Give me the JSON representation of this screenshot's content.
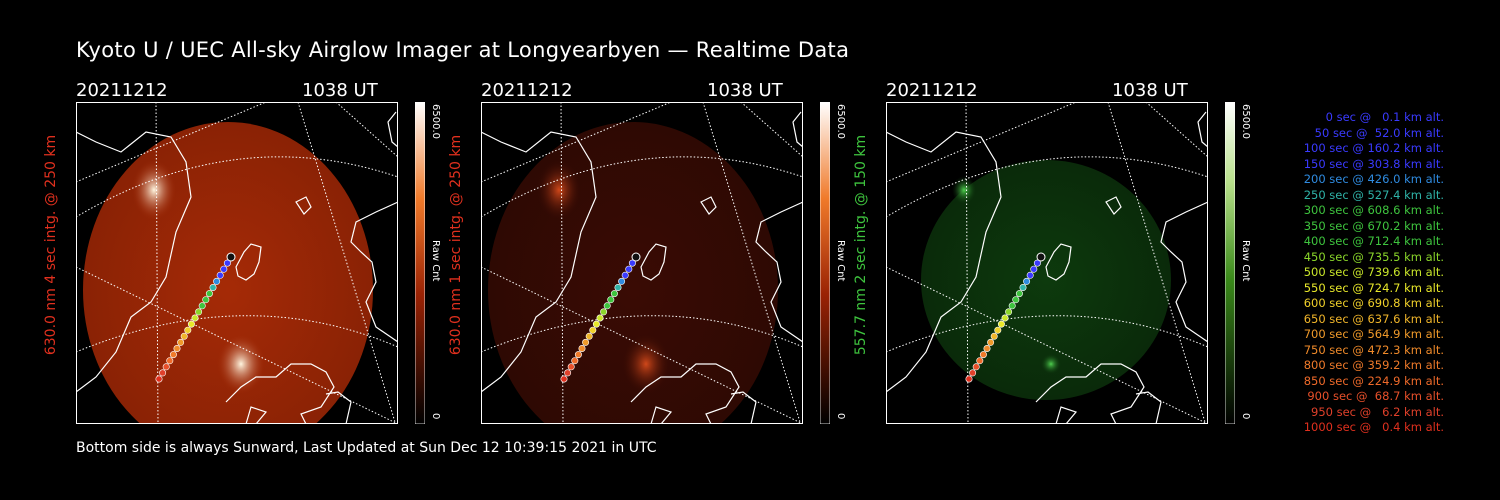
{
  "title": "Kyoto U / UEC All-sky Airglow Imager at Longyearbyen — Realtime Data",
  "footer": "Bottom side is always Sunward, Last Updated at Sun Dec 12 10:39:15 2021 in UTC",
  "panels": [
    {
      "date": "20211212",
      "time": "1038 UT",
      "side_label": "630.0 nm 4 sec intg. @ 250 km",
      "label_color": "#e0301e",
      "cbar_max": "6500.0",
      "cbar_min": "0",
      "cbar_unit": "Raw Cnt",
      "colormap": "red"
    },
    {
      "date": "20211212",
      "time": "1038 UT",
      "side_label": "630.0 nm 1 sec intg. @ 250 km",
      "label_color": "#e0301e",
      "cbar_max": "6500.0",
      "cbar_min": "0",
      "cbar_unit": "Raw Cnt",
      "colormap": "red"
    },
    {
      "date": "20211212",
      "time": "1038 UT",
      "side_label": "557.7 nm 2 sec intg. @ 150 km",
      "label_color": "#3ec43e",
      "cbar_max": "6500.0",
      "cbar_min": "0",
      "cbar_unit": "Raw Cnt",
      "colormap": "green"
    }
  ],
  "legend": [
    {
      "text": "0 sec @   0.1 km alt.",
      "color": "#3a3aff"
    },
    {
      "text": "50 sec @  52.0 km alt.",
      "color": "#3a3aff"
    },
    {
      "text": "100 sec @ 160.2 km alt.",
      "color": "#3a3aff"
    },
    {
      "text": "150 sec @ 303.8 km alt.",
      "color": "#3a3aff"
    },
    {
      "text": "200 sec @ 426.0 km alt.",
      "color": "#2f8be0"
    },
    {
      "text": "250 sec @ 527.4 km alt.",
      "color": "#2fb3a8"
    },
    {
      "text": "300 sec @ 608.6 km alt.",
      "color": "#3ec43e"
    },
    {
      "text": "350 sec @ 670.2 km alt.",
      "color": "#3ec43e"
    },
    {
      "text": "400 sec @ 712.4 km alt.",
      "color": "#3ec43e"
    },
    {
      "text": "450 sec @ 735.5 km alt.",
      "color": "#8ad62a"
    },
    {
      "text": "500 sec @ 739.6 km alt.",
      "color": "#c9e62a"
    },
    {
      "text": "550 sec @ 724.7 km alt.",
      "color": "#e8e82a"
    },
    {
      "text": "600 sec @ 690.8 km alt.",
      "color": "#f0d02a"
    },
    {
      "text": "650 sec @ 637.6 km alt.",
      "color": "#f0b52a"
    },
    {
      "text": "700 sec @ 564.9 km alt.",
      "color": "#f09a2a"
    },
    {
      "text": "750 sec @ 472.3 km alt.",
      "color": "#ef8a2a"
    },
    {
      "text": "800 sec @ 359.2 km alt.",
      "color": "#ef7a2a"
    },
    {
      "text": "850 sec @ 224.9 km alt.",
      "color": "#ef6a2a"
    },
    {
      "text": "900 sec @  68.7 km alt.",
      "color": "#e8502a"
    },
    {
      "text": "950 sec @   6.2 km alt.",
      "color": "#e0402a"
    },
    {
      "text": "1000 sec @   0.4 km alt.",
      "color": "#e0301e"
    }
  ]
}
